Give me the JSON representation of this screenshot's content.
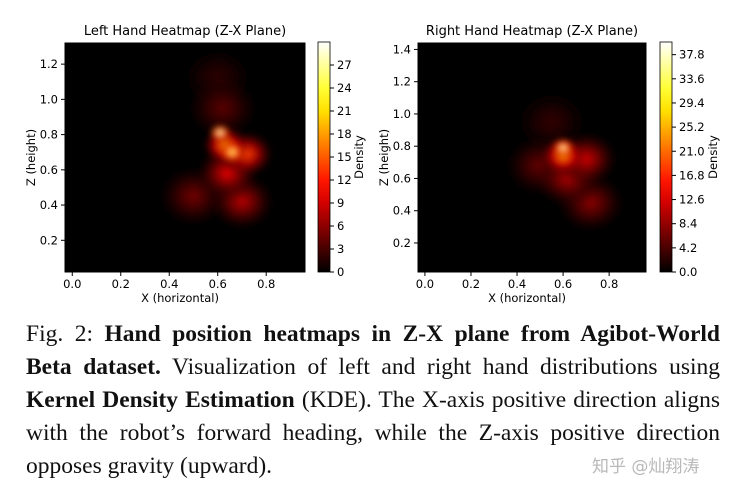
{
  "figure": {
    "panels": [
      {
        "title": "Left Hand Heatmap (Z-X Plane)",
        "xlabel": "X (horizontal)",
        "ylabel": "Z (height)",
        "xticks": [
          "0.0",
          "0.2",
          "0.4",
          "0.6",
          "0.8"
        ],
        "yticks": [
          "0.2",
          "0.4",
          "0.6",
          "0.8",
          "1.0",
          "1.2"
        ],
        "colorbar_label": "Density",
        "colorbar_ticks": [
          "0",
          "3",
          "6",
          "9",
          "12",
          "15",
          "18",
          "21",
          "24",
          "27"
        ]
      },
      {
        "title": "Right Hand Heatmap (Z-X Plane)",
        "xlabel": "X (horizontal)",
        "ylabel": "Z (height)",
        "xticks": [
          "0.0",
          "0.2",
          "0.4",
          "0.6",
          "0.8"
        ],
        "yticks": [
          "0.2",
          "0.4",
          "0.6",
          "0.8",
          "1.0",
          "1.2",
          "1.4"
        ],
        "colorbar_label": "Density",
        "colorbar_ticks": [
          "0.0",
          "4.2",
          "8.4",
          "12.6",
          "16.8",
          "21.0",
          "25.2",
          "29.4",
          "33.6",
          "37.8"
        ]
      }
    ]
  },
  "chart_data": [
    {
      "type": "heatmap",
      "title": "Left Hand Heatmap (Z-X Plane)",
      "xlabel": "X (horizontal)",
      "ylabel": "Z (height)",
      "xlim": [
        -0.03,
        0.96
      ],
      "ylim": [
        0.02,
        1.32
      ],
      "colormap": "hot",
      "colorbar_range": [
        0,
        30
      ],
      "hotspots": [
        {
          "x": 0.61,
          "z": 0.81,
          "density": 29
        },
        {
          "x": 0.66,
          "z": 0.7,
          "density": 26
        },
        {
          "x": 0.63,
          "z": 0.74,
          "density": 18
        },
        {
          "x": 0.72,
          "z": 0.69,
          "density": 14
        },
        {
          "x": 0.64,
          "z": 0.58,
          "density": 10
        },
        {
          "x": 0.7,
          "z": 0.42,
          "density": 8
        },
        {
          "x": 0.5,
          "z": 0.45,
          "density": 5
        },
        {
          "x": 0.62,
          "z": 0.95,
          "density": 4
        },
        {
          "x": 0.6,
          "z": 1.12,
          "density": 2
        }
      ]
    },
    {
      "type": "heatmap",
      "title": "Right Hand Heatmap (Z-X Plane)",
      "xlabel": "X (horizontal)",
      "ylabel": "Z (height)",
      "xlim": [
        -0.03,
        0.96
      ],
      "ylim": [
        0.02,
        1.44
      ],
      "colormap": "hot",
      "colorbar_range": [
        0,
        40
      ],
      "hotspots": [
        {
          "x": 0.6,
          "z": 0.79,
          "density": 38
        },
        {
          "x": 0.6,
          "z": 0.74,
          "density": 24
        },
        {
          "x": 0.7,
          "z": 0.72,
          "density": 12
        },
        {
          "x": 0.62,
          "z": 0.6,
          "density": 10
        },
        {
          "x": 0.72,
          "z": 0.45,
          "density": 8
        },
        {
          "x": 0.5,
          "z": 0.68,
          "density": 6
        },
        {
          "x": 0.55,
          "z": 0.95,
          "density": 3
        }
      ]
    }
  ],
  "caption": {
    "label": "Fig. 2:",
    "bold": "Hand position heatmaps in Z-X plane from Agibot-World Beta dataset.",
    "part1": "Visualization of left and right hand distributions using",
    "bold2": "Kernel Density Estimation",
    "part2": "(KDE). The X-axis positive direction aligns with the robot’s forward heading, while the Z-axis positive direction opposes gravity (upward)."
  },
  "watermark": "知乎 @灿翔涛"
}
